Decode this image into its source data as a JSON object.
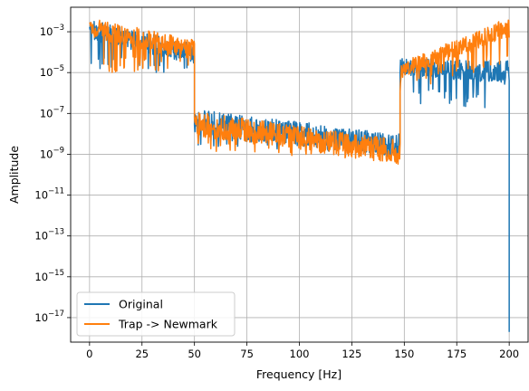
{
  "chart_data": {
    "type": "line",
    "title": "",
    "xlabel": "Frequency [Hz]",
    "ylabel": "Amplitude",
    "xlim": [
      -9,
      209
    ],
    "ylim_log10": [
      -18.2,
      -1.8
    ],
    "yscale": "log",
    "grid": true,
    "legend_placement": "lower-left",
    "x_ticks": [
      0,
      25,
      50,
      75,
      100,
      125,
      150,
      175,
      200
    ],
    "y_ticks": [
      {
        "exp": -3,
        "base": "10",
        "sup": "−3"
      },
      {
        "exp": -5,
        "base": "10",
        "sup": "−5"
      },
      {
        "exp": -7,
        "base": "10",
        "sup": "−7"
      },
      {
        "exp": -9,
        "base": "10",
        "sup": "−9"
      },
      {
        "exp": -11,
        "base": "10",
        "sup": "−11"
      },
      {
        "exp": -13,
        "base": "10",
        "sup": "−13"
      },
      {
        "exp": -15,
        "base": "10",
        "sup": "−15"
      },
      {
        "exp": -17,
        "base": "10",
        "sup": "−17"
      }
    ],
    "series": [
      {
        "name": "Original",
        "color": "#1f77b4",
        "segments": [
          {
            "x": [
              0,
              50
            ],
            "center_log10": [
              -2.9,
              -4.1
            ],
            "spread_log10": [
              0.5,
              0.5
            ],
            "dips_to_log10": [
              -5,
              -5
            ]
          },
          {
            "x": [
              50,
              148
            ],
            "center_log10": [
              -7.4,
              -8.6
            ],
            "spread_log10": [
              0.6,
              0.6
            ],
            "dips_to_log10": [
              -8.6,
              -9.0
            ]
          },
          {
            "x": [
              148,
              200
            ],
            "center_log10": [
              -4.7,
              -5.0
            ],
            "spread_log10": [
              0.4,
              0.6
            ],
            "dips_to_log10": [
              -6.5,
              -6.8
            ]
          }
        ],
        "end_value_log10": -17.7
      },
      {
        "name": "Trap -> Newmark",
        "color": "#ff7f0e",
        "segments": [
          {
            "x": [
              0,
              50
            ],
            "center_log10": [
              -2.8,
              -3.9
            ],
            "spread_log10": [
              0.5,
              0.5
            ],
            "dips_to_log10": [
              -5,
              -5
            ]
          },
          {
            "x": [
              50,
              148
            ],
            "center_log10": [
              -7.5,
              -8.9
            ],
            "spread_log10": [
              0.6,
              0.6
            ],
            "dips_to_log10": [
              -8.8,
              -9.4
            ]
          },
          {
            "x": [
              148,
              200
            ],
            "center_log10": [
              -4.9,
              -2.8
            ],
            "spread_log10": [
              0.4,
              0.5
            ],
            "dips_to_log10": [
              -6.0,
              -4.5
            ]
          }
        ]
      }
    ]
  }
}
